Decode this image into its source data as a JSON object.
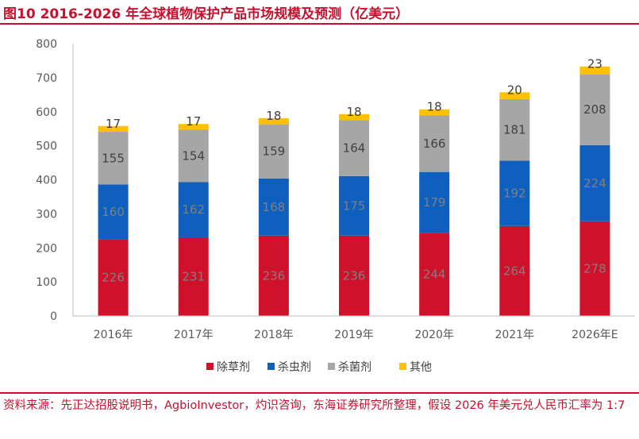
{
  "title": "图10  2016-2026 年全球植物保护产品市场规模及预测（亿美元）",
  "source": "资料来源：先正达招股说明书，AgbioInvestor，灼识咨询，东海证券研究所整理，假设 2026 年美元兑人民币汇率为 1:7",
  "chart_data": {
    "type": "bar",
    "stacked": true,
    "title": "2016-2026 年全球植物保护产品市场规模及预测（亿美元）",
    "xlabel": "",
    "ylabel": "",
    "ylim": [
      0,
      800
    ],
    "yticks": [
      0,
      100,
      200,
      300,
      400,
      500,
      600,
      700,
      800
    ],
    "grid": false,
    "legend": "bottom",
    "categories": [
      "2016年",
      "2017年",
      "2018年",
      "2019年",
      "2020年",
      "2021年",
      "2026年E"
    ],
    "series": [
      {
        "name": "除草剂",
        "color": "#d0112b",
        "values": [
          226,
          231,
          236,
          236,
          244,
          264,
          278
        ]
      },
      {
        "name": "杀虫剂",
        "color": "#0f5fbf",
        "values": [
          160,
          162,
          168,
          175,
          179,
          192,
          224
        ]
      },
      {
        "name": "杀菌剂",
        "color": "#a6a6a6",
        "values": [
          155,
          154,
          159,
          164,
          166,
          181,
          208
        ]
      },
      {
        "name": "其他",
        "color": "#ffc000",
        "values": [
          17,
          17,
          18,
          18,
          18,
          20,
          23
        ]
      }
    ]
  }
}
